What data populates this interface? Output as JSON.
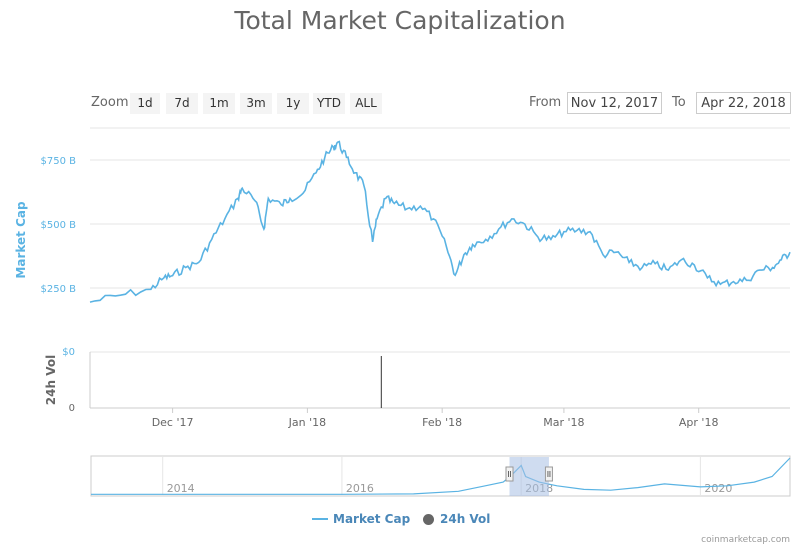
{
  "chart": {
    "title": "Total Market Capitalization",
    "credit": "coinmarketcap.com",
    "zoom_label": "Zoom",
    "zoom_buttons": [
      "1d",
      "7d",
      "1m",
      "3m",
      "1y",
      "YTD",
      "ALL"
    ],
    "from_label": "From",
    "from_value": "Nov 12, 2017",
    "to_label": "To",
    "to_value": "Apr 22, 2018",
    "legend": [
      "Market Cap",
      "24h Vol"
    ]
  },
  "colors": {
    "market_cap": "#5ab3e3",
    "volume": "#333333",
    "axis_text": "#5ab3e3",
    "navigator_mask": "#a8bfe3"
  },
  "chart_data": {
    "type": "line",
    "series": [
      {
        "name": "Market Cap",
        "unit": "B",
        "x": [
          "2017-11-12",
          "2017-11-19",
          "2017-11-26",
          "2017-11-29",
          "2017-12-01",
          "2017-12-04",
          "2017-12-07",
          "2017-12-10",
          "2017-12-13",
          "2017-12-16",
          "2017-12-17",
          "2017-12-20",
          "2017-12-22",
          "2017-12-23",
          "2017-12-26",
          "2017-12-28",
          "2017-12-31",
          "2018-01-03",
          "2018-01-05",
          "2018-01-07",
          "2018-01-08",
          "2018-01-10",
          "2018-01-12",
          "2018-01-14",
          "2018-01-16",
          "2018-01-17",
          "2018-01-19",
          "2018-01-21",
          "2018-01-24",
          "2018-01-27",
          "2018-01-30",
          "2018-02-02",
          "2018-02-04",
          "2018-02-06",
          "2018-02-08",
          "2018-02-11",
          "2018-02-14",
          "2018-02-17",
          "2018-02-20",
          "2018-02-23",
          "2018-02-26",
          "2018-03-01",
          "2018-03-04",
          "2018-03-07",
          "2018-03-10",
          "2018-03-13",
          "2018-03-16",
          "2018-03-19",
          "2018-03-22",
          "2018-03-25",
          "2018-03-28",
          "2018-03-31",
          "2018-04-03",
          "2018-04-06",
          "2018-04-09",
          "2018-04-12",
          "2018-04-15",
          "2018-04-18",
          "2018-04-20",
          "2018-04-22"
        ],
        "y": [
          195,
          222,
          245,
          290,
          298,
          330,
          350,
          440,
          520,
          600,
          640,
          590,
          480,
          600,
          575,
          600,
          620,
          700,
          760,
          800,
          820,
          760,
          700,
          650,
          430,
          520,
          600,
          580,
          560,
          570,
          520,
          410,
          300,
          380,
          420,
          440,
          480,
          520,
          500,
          450,
          440,
          470,
          475,
          470,
          380,
          390,
          350,
          330,
          345,
          320,
          360,
          340,
          290,
          265,
          275,
          280,
          320,
          330,
          360,
          390
        ]
      },
      {
        "name": "24h Vol",
        "x": [
          "2018-01-18"
        ],
        "y": [
          1
        ]
      }
    ],
    "xlabel": "",
    "ylabel": "Market Cap",
    "y2label": "24h Vol",
    "ylim": [
      0,
      875
    ],
    "y_ticks": [
      "$250 B",
      "$500 B",
      "$750 B"
    ],
    "y2_ticks": [
      "$0",
      "0"
    ],
    "x_ticks": [
      {
        "label": "Dec '17",
        "date": "2017-12-01"
      },
      {
        "label": "Jan '18",
        "date": "2018-01-01"
      },
      {
        "label": "Feb '18",
        "date": "2018-02-01"
      },
      {
        "label": "Mar '18",
        "date": "2018-03-01"
      },
      {
        "label": "Apr '18",
        "date": "2018-04-01"
      }
    ],
    "navigator": {
      "x_ticks": [
        "2014",
        "2016",
        "2018",
        "2020"
      ],
      "x": [
        2013.2,
        2014,
        2015,
        2016,
        2016.8,
        2017.3,
        2017.6,
        2017.8,
        2017.9,
        2018.0,
        2018.05,
        2018.2,
        2018.4,
        2018.7,
        2019.0,
        2019.3,
        2019.6,
        2020.0,
        2020.3,
        2020.6,
        2020.8,
        2021.0
      ],
      "y": [
        0.02,
        0.02,
        0.02,
        0.02,
        0.03,
        0.1,
        0.25,
        0.35,
        0.55,
        0.8,
        0.5,
        0.35,
        0.25,
        0.15,
        0.13,
        0.2,
        0.3,
        0.22,
        0.25,
        0.35,
        0.5,
        1.0
      ],
      "selected_range": [
        "Nov 12, 2017",
        "Apr 22, 2018"
      ]
    },
    "grid": true,
    "legend": "bottom-center"
  }
}
